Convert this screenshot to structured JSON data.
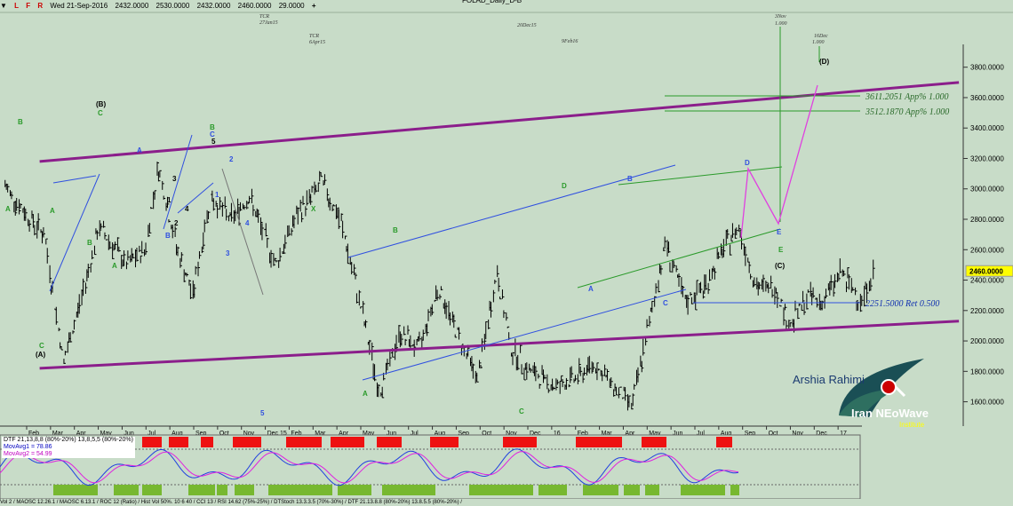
{
  "header": {
    "icons": [
      "L",
      "F",
      "R"
    ],
    "date": "Wed 21-Sep-2016",
    "open": "2432.0000",
    "high": "2530.0000",
    "low": "2432.0000",
    "close": "2460.0000",
    "change": "29.0000",
    "title": "FOLAD_Daily_D-B"
  },
  "colors": {
    "bg": "#c8dcc8",
    "channel": "#8b1e8b",
    "blue": "#3050e0",
    "green": "#2a9a2a",
    "pink": "#e040e0",
    "red_box": "#ee1111",
    "green_box": "#77b830"
  },
  "chart_data": {
    "type": "line",
    "ylim": [
      1440,
      3950
    ],
    "yticks": [
      "3800.0000",
      "3600.0000",
      "3400.0000",
      "3200.0000",
      "3000.0000",
      "2800.0000",
      "2600.0000",
      "2400.0000",
      "2200.0000",
      "2000.0000",
      "1800.0000",
      "1600.0000"
    ],
    "last_price_label": "2460.0000",
    "x_labels": [
      "Feb",
      "Mar",
      "Apr",
      "May",
      "Jun",
      "Jul",
      "Aug",
      "Sep",
      "Oct",
      "Nov",
      "Dec 15",
      "Feb",
      "Mar",
      "Apr",
      "May",
      "Jun",
      "Jul",
      "Aug",
      "Sep",
      "Oct",
      "Nov",
      "Dec",
      "16",
      "Feb",
      "Mar",
      "Apr",
      "May",
      "Jun",
      "Jul",
      "Aug",
      "Sep",
      "Oct",
      "Nov",
      "Dec",
      "17"
    ],
    "price_points": [
      {
        "d": "2015-01-05",
        "p": 3020
      },
      {
        "d": "2015-01-20",
        "p": 2850
      },
      {
        "d": "2015-02-05",
        "p": 2700
      },
      {
        "d": "2015-02-20",
        "p": 1860
      },
      {
        "d": "2015-03-05",
        "p": 2250
      },
      {
        "d": "2015-03-20",
        "p": 2750
      },
      {
        "d": "2015-04-10",
        "p": 2500
      },
      {
        "d": "2015-04-25",
        "p": 2600
      },
      {
        "d": "2015-05-05",
        "p": 3150
      },
      {
        "d": "2015-05-20",
        "p": 2600
      },
      {
        "d": "2015-06-01",
        "p": 2300
      },
      {
        "d": "2015-06-15",
        "p": 2950
      },
      {
        "d": "2015-07-01",
        "p": 2800
      },
      {
        "d": "2015-07-15",
        "p": 2950
      },
      {
        "d": "2015-08-05",
        "p": 2500
      },
      {
        "d": "2015-08-20",
        "p": 2800
      },
      {
        "d": "2015-09-10",
        "p": 3050
      },
      {
        "d": "2015-09-25",
        "p": 2780
      },
      {
        "d": "2015-10-10",
        "p": 2250
      },
      {
        "d": "2015-10-25",
        "p": 1660
      },
      {
        "d": "2015-11-10",
        "p": 2050
      },
      {
        "d": "2015-11-25",
        "p": 1950
      },
      {
        "d": "2015-12-10",
        "p": 2350
      },
      {
        "d": "2015-12-25",
        "p": 2050
      },
      {
        "d": "2016-01-10",
        "p": 1750
      },
      {
        "d": "2016-01-25",
        "p": 2450
      },
      {
        "d": "2016-02-05",
        "p": 1950
      },
      {
        "d": "2016-02-20",
        "p": 1800
      },
      {
        "d": "2016-03-10",
        "p": 1700
      },
      {
        "d": "2016-03-25",
        "p": 1750
      },
      {
        "d": "2016-04-10",
        "p": 1850
      },
      {
        "d": "2016-04-25",
        "p": 1700
      },
      {
        "d": "2016-05-10",
        "p": 1580
      },
      {
        "d": "2016-05-25",
        "p": 2200
      },
      {
        "d": "2016-06-05",
        "p": 2650
      },
      {
        "d": "2016-06-20",
        "p": 2250
      },
      {
        "d": "2016-07-05",
        "p": 2350
      },
      {
        "d": "2016-07-20",
        "p": 2600
      },
      {
        "d": "2016-08-01",
        "p": 2750
      },
      {
        "d": "2016-08-15",
        "p": 2350
      },
      {
        "d": "2016-08-30",
        "p": 2350
      },
      {
        "d": "2016-09-10",
        "p": 2100
      },
      {
        "d": "2016-09-25",
        "p": 2300
      },
      {
        "d": "2016-10-05",
        "p": 2250
      },
      {
        "d": "2016-10-20",
        "p": 2450
      },
      {
        "d": "2016-11-05",
        "p": 2260
      },
      {
        "d": "2016-11-15",
        "p": 2460
      }
    ],
    "channel_lines": [
      {
        "from": {
          "d": "2015-02-01",
          "p": 1820
        },
        "to": {
          "d": "2017-01-20",
          "p": 2130
        }
      },
      {
        "from": {
          "d": "2015-02-01",
          "p": 3180
        },
        "to": {
          "d": "2017-01-20",
          "p": 3700
        }
      }
    ],
    "horizontal_levels": [
      {
        "p": 3611.2051,
        "label": "3611.2051 App% 1.000"
      },
      {
        "p": 3512.187,
        "label": "3512.1870 App% 1.000"
      },
      {
        "p": 2251.5,
        "label": "2251.5000 Ret 0.500"
      }
    ],
    "projection_path": [
      {
        "d": "2016-11-15",
        "p": 2460
      },
      {
        "d": "2016-11-28",
        "p": 2880
      },
      {
        "d": "2016-12-18",
        "p": 2500
      },
      {
        "d": "2017-01-10",
        "p": 3600
      },
      {
        "d": "2017-01-12",
        "p": 3740
      }
    ],
    "wave_labels": [
      "(A)",
      "(B)",
      "(C)",
      "(D)",
      "A",
      "B",
      "C",
      "D",
      "E",
      "X",
      "1",
      "2",
      "3",
      "4",
      "5"
    ],
    "time_markers": [
      {
        "label": "TCR",
        "sub": "27Jan15"
      },
      {
        "label": "TCR",
        "sub": "6Apr15"
      },
      {
        "label": "20Dec15"
      },
      {
        "label": "9Feb16"
      },
      {
        "label": "3Nov",
        "sub": "1.000"
      },
      {
        "label": "16Dec",
        "sub": "1.000"
      }
    ]
  },
  "oscillator": {
    "legend": [
      "DTF 21,13,8,8 (80%-20%) 13,8,5,5 (80%-20%)",
      "MovAvg1 = 78.86",
      "MovAvg2 = 54.99"
    ]
  },
  "footer": "Vol 2 / MAOSC 12.26.1 / MAOSC 6.13.1 / ROC 12 (Ratio) / Hist Vol 50%. 10 6 40 / CCI 13 / RSI 14.62 (75%-25%) / DTStoch 13.3.3.5 (70%-30%) / DTF 21.13.8.8 (80%-20%) 13.8.5.5 (80%-20%) /",
  "watermark": {
    "name": "Arshia Rahimi",
    "brand": "Iran NEoWave",
    "sub": "Institute"
  }
}
